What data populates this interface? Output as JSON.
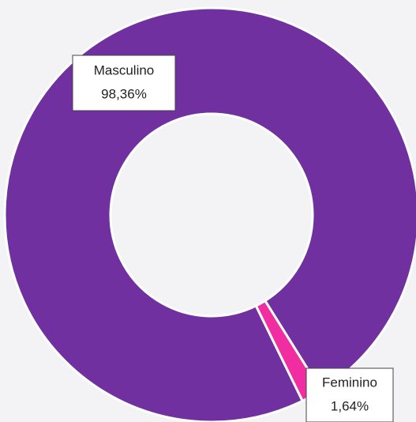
{
  "chart_data": {
    "type": "donut",
    "categories": [
      "Masculino",
      "Feminino"
    ],
    "values": [
      98.36,
      1.64
    ],
    "value_labels": [
      "98,36%",
      "1,64%"
    ],
    "colors": [
      "#7030a0",
      "#f02ea2"
    ]
  }
}
